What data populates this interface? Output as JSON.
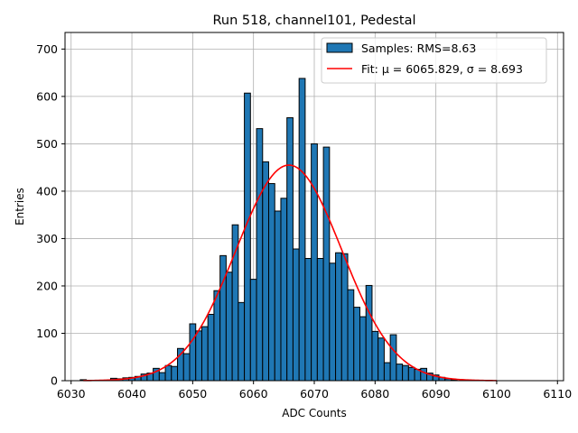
{
  "chart_data": {
    "type": "bar",
    "title": "Run 518, channel101, Pedestal",
    "xlabel": "ADC Counts",
    "ylabel": "Entries",
    "xlim": [
      6029,
      6111
    ],
    "ylim": [
      0,
      735
    ],
    "xticks": [
      6030,
      6040,
      6050,
      6060,
      6070,
      6080,
      6090,
      6100,
      6110
    ],
    "yticks": [
      0,
      100,
      200,
      300,
      400,
      500,
      600,
      700
    ],
    "grid": true,
    "legend_position": "top-right",
    "bin_width": 1,
    "series": [
      {
        "name": "Samples: RMS=8.63",
        "color": "#1f77b4",
        "edge_color": "#000000",
        "x": [
          6032,
          6037,
          6038,
          6039,
          6040,
          6041,
          6042,
          6043,
          6044,
          6045,
          6046,
          6047,
          6048,
          6049,
          6050,
          6051,
          6052,
          6053,
          6054,
          6055,
          6056,
          6057,
          6058,
          6059,
          6060,
          6061,
          6062,
          6063,
          6064,
          6065,
          6066,
          6067,
          6068,
          6069,
          6070,
          6071,
          6072,
          6073,
          6074,
          6075,
          6076,
          6077,
          6078,
          6079,
          6080,
          6081,
          6082,
          6083,
          6084,
          6085,
          6086,
          6087,
          6088,
          6089,
          6090,
          6091,
          6092,
          6093
        ],
        "values": [
          2,
          5,
          4,
          6,
          7,
          9,
          14,
          16,
          26,
          17,
          32,
          30,
          68,
          57,
          120,
          105,
          114,
          140,
          190,
          264,
          229,
          329,
          165,
          607,
          214,
          532,
          462,
          416,
          358,
          385,
          555,
          278,
          638,
          258,
          500,
          258,
          493,
          248,
          270,
          268,
          192,
          155,
          135,
          201,
          104,
          90,
          38,
          97,
          35,
          32,
          28,
          24,
          26,
          16,
          12,
          7,
          4,
          2
        ]
      }
    ],
    "fit": {
      "name": "Fit: μ = 6065.829, σ = 8.693",
      "color": "#ff0000",
      "mu": 6065.829,
      "sigma": 8.693,
      "amplitude": 455,
      "x_range": [
        6032,
        6100
      ]
    }
  }
}
